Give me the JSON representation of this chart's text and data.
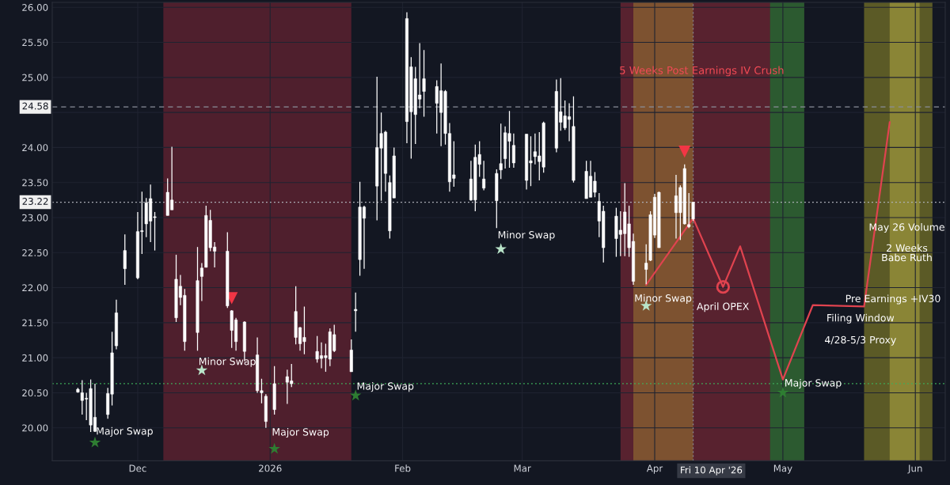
{
  "chart_data": {
    "type": "candlestick",
    "color": "#ffffff",
    "x": [
      "2025-11-17",
      "2025-11-18",
      "2025-11-19",
      "2025-11-20",
      "2025-11-21",
      "2025-11-24",
      "2025-11-25",
      "2025-11-26",
      "2025-11-28",
      "2025-12-01",
      "2025-12-02",
      "2025-12-03",
      "2025-12-04",
      "2025-12-05",
      "2025-12-08",
      "2025-12-09",
      "2025-12-10",
      "2025-12-11",
      "2025-12-12",
      "2025-12-15",
      "2025-12-16",
      "2025-12-17",
      "2025-12-18",
      "2025-12-19",
      "2025-12-22",
      "2025-12-23",
      "2025-12-24",
      "2025-12-26",
      "2025-12-29",
      "2025-12-30",
      "2025-12-31",
      "2026-01-02",
      "2026-01-05",
      "2026-01-06",
      "2026-01-07",
      "2026-01-08",
      "2026-01-09",
      "2026-01-12",
      "2026-01-13",
      "2026-01-14",
      "2026-01-15",
      "2026-01-16",
      "2026-01-20",
      "2026-01-21",
      "2026-01-22",
      "2026-01-23",
      "2026-01-26",
      "2026-01-27",
      "2026-01-28",
      "2026-01-29",
      "2026-01-30",
      "2026-02-02",
      "2026-02-03",
      "2026-02-04",
      "2026-02-05",
      "2026-02-06",
      "2026-02-09",
      "2026-02-10",
      "2026-02-11",
      "2026-02-12",
      "2026-02-13",
      "2026-02-17",
      "2026-02-18",
      "2026-02-19",
      "2026-02-20",
      "2026-02-23",
      "2026-02-24",
      "2026-02-25",
      "2026-02-26",
      "2026-02-27",
      "2026-03-02",
      "2026-03-03",
      "2026-03-04",
      "2026-03-05",
      "2026-03-06",
      "2026-03-09",
      "2026-03-10",
      "2026-03-11",
      "2026-03-12",
      "2026-03-13",
      "2026-03-16",
      "2026-03-17",
      "2026-03-18",
      "2026-03-19",
      "2026-03-20",
      "2026-03-23",
      "2026-03-24",
      "2026-03-25",
      "2026-03-26",
      "2026-03-27",
      "2026-03-30",
      "2026-03-31",
      "2026-04-01",
      "2026-04-02",
      "2026-04-06",
      "2026-04-07",
      "2026-04-08",
      "2026-04-09",
      "2026-04-10"
    ],
    "ohlc": [
      [
        20.51,
        20.57,
        20.5,
        20.55
      ],
      [
        20.39,
        20.68,
        20.19,
        20.5
      ],
      [
        20.41,
        20.5,
        20.11,
        20.42
      ],
      [
        20.04,
        20.69,
        19.94,
        20.56
      ],
      [
        19.95,
        20.63,
        19.94,
        20.15
      ],
      [
        20.19,
        20.57,
        20.13,
        20.49
      ],
      [
        20.48,
        21.37,
        20.32,
        21.07
      ],
      [
        21.17,
        21.83,
        21.12,
        21.64
      ],
      [
        22.27,
        22.76,
        22.04,
        22.53
      ],
      [
        22.14,
        23.08,
        22.12,
        22.8
      ],
      [
        22.8,
        23.37,
        22.48,
        22.81
      ],
      [
        22.91,
        23.28,
        22.72,
        23.21
      ],
      [
        22.95,
        23.47,
        22.65,
        23.27
      ],
      [
        23.0,
        23.08,
        22.53,
        23.01
      ],
      [
        23.03,
        23.56,
        23.03,
        23.36
      ],
      [
        23.11,
        24.01,
        23.11,
        23.25
      ],
      [
        21.57,
        22.47,
        21.51,
        22.12
      ],
      [
        21.86,
        22.18,
        21.75,
        22.02
      ],
      [
        21.23,
        21.98,
        21.1,
        21.89
      ],
      [
        21.36,
        22.58,
        21.1,
        22.1
      ],
      [
        22.16,
        22.35,
        21.81,
        22.28
      ],
      [
        22.29,
        23.17,
        22.29,
        23.03
      ],
      [
        22.57,
        23.11,
        22.52,
        22.96
      ],
      [
        22.52,
        22.65,
        22.29,
        22.58
      ],
      [
        21.74,
        22.79,
        21.71,
        22.52
      ],
      [
        21.39,
        21.68,
        21.14,
        21.67
      ],
      [
        21.23,
        21.57,
        21.1,
        21.54
      ],
      [
        21.09,
        21.52,
        20.95,
        21.51
      ],
      [
        20.53,
        21.29,
        20.5,
        21.04
      ],
      [
        20.5,
        20.7,
        20.35,
        20.53
      ],
      [
        20.09,
        20.48,
        20.0,
        20.45
      ],
      [
        20.26,
        20.88,
        20.19,
        20.63
      ],
      [
        20.65,
        20.83,
        20.34,
        20.73
      ],
      [
        20.63,
        20.91,
        20.58,
        20.67
      ],
      [
        21.29,
        22.02,
        21.19,
        21.66
      ],
      [
        21.2,
        21.44,
        21.1,
        21.43
      ],
      [
        21.23,
        21.73,
        21.05,
        21.29
      ],
      [
        20.98,
        21.31,
        20.93,
        21.09
      ],
      [
        20.99,
        21.22,
        20.85,
        21.03
      ],
      [
        21.0,
        21.2,
        20.8,
        21.03
      ],
      [
        20.98,
        21.42,
        20.88,
        21.37
      ],
      [
        21.1,
        21.47,
        21.08,
        21.33
      ],
      [
        20.8,
        21.26,
        20.8,
        21.11
      ],
      [
        21.67,
        21.93,
        21.37,
        21.69
      ],
      [
        22.4,
        23.51,
        22.17,
        23.15
      ],
      [
        22.99,
        23.17,
        22.27,
        23.15
      ],
      [
        23.45,
        25.01,
        22.96,
        24.0
      ],
      [
        23.99,
        24.5,
        23.24,
        24.2
      ],
      [
        23.63,
        24.24,
        23.37,
        24.22
      ],
      [
        22.81,
        23.6,
        22.7,
        23.5
      ],
      [
        23.28,
        24.0,
        23.28,
        23.88
      ],
      [
        24.37,
        25.93,
        24.06,
        25.84
      ],
      [
        24.51,
        25.29,
        23.84,
        25.15
      ],
      [
        24.47,
        25.15,
        24.05,
        24.98
      ],
      [
        24.69,
        25.49,
        24.56,
        24.75
      ],
      [
        24.8,
        25.39,
        24.44,
        24.98
      ],
      [
        24.63,
        24.96,
        24.2,
        24.87
      ],
      [
        24.5,
        25.2,
        24.02,
        24.81
      ],
      [
        24.2,
        24.82,
        24.04,
        24.8
      ],
      [
        23.51,
        24.35,
        23.37,
        24.2
      ],
      [
        23.56,
        24.09,
        23.44,
        23.61
      ],
      [
        23.25,
        23.81,
        23.24,
        23.55
      ],
      [
        23.25,
        24.04,
        23.09,
        23.86
      ],
      [
        23.76,
        24.09,
        23.58,
        23.9
      ],
      [
        23.42,
        23.81,
        23.39,
        23.55
      ],
      [
        23.24,
        23.69,
        22.85,
        23.63
      ],
      [
        23.68,
        24.34,
        23.55,
        23.77
      ],
      [
        23.84,
        24.3,
        23.7,
        24.21
      ],
      [
        24.09,
        24.52,
        23.71,
        24.2
      ],
      [
        23.78,
        24.2,
        23.71,
        24.03
      ],
      [
        23.53,
        24.19,
        23.4,
        24.19
      ],
      [
        23.78,
        24.16,
        23.45,
        23.81
      ],
      [
        23.87,
        24.2,
        23.76,
        23.94
      ],
      [
        23.8,
        24.22,
        23.53,
        23.88
      ],
      [
        23.72,
        24.37,
        23.64,
        24.35
      ],
      [
        23.99,
        24.97,
        23.93,
        24.8
      ],
      [
        24.36,
        24.99,
        24.24,
        24.51
      ],
      [
        24.28,
        24.67,
        24.25,
        24.45
      ],
      [
        24.4,
        24.63,
        24.09,
        24.44
      ],
      [
        23.53,
        24.73,
        23.5,
        24.3
      ],
      [
        23.27,
        23.81,
        23.27,
        23.66
      ],
      [
        23.29,
        23.81,
        23.29,
        23.59
      ],
      [
        23.36,
        23.65,
        23.29,
        23.52
      ],
      [
        22.95,
        23.35,
        22.72,
        23.23
      ],
      [
        22.57,
        23.17,
        22.36,
        23.09
      ],
      [
        22.7,
        23.14,
        22.44,
        23.02
      ],
      [
        22.76,
        23.09,
        22.45,
        22.82
      ],
      [
        22.77,
        23.49,
        22.45,
        23.08
      ],
      [
        22.57,
        23.17,
        22.44,
        22.91
      ],
      [
        22.09,
        22.77,
        22.04,
        22.66
      ],
      [
        22.26,
        22.62,
        22.05,
        22.35
      ],
      [
        22.39,
        23.09,
        22.38,
        23.04
      ],
      [
        22.75,
        23.34,
        22.71,
        23.29
      ],
      [
        22.57,
        23.37,
        22.57,
        23.36
      ],
      [
        23.07,
        23.61,
        22.7,
        23.31
      ],
      [
        23.07,
        23.46,
        22.68,
        23.43
      ],
      [
        22.91,
        23.76,
        22.9,
        23.7
      ],
      [
        22.87,
        23.35,
        22.85,
        22.9
      ],
      [
        22.98,
        23.22,
        22.95,
        23.22
      ]
    ],
    "series": [
      {
        "type": "line",
        "color": "#e0434f",
        "marker": "none",
        "x": [
          "2026-03-30",
          "2026-04-10",
          "2026-04-17",
          "2026-04-21",
          "2026-05-01",
          "2026-05-08",
          "2026-05-20",
          "2026-05-26"
        ],
        "values": [
          22.04,
          22.99,
          22.01,
          22.59,
          20.69,
          21.75,
          21.73,
          24.36
        ]
      },
      {
        "type": "scatter",
        "color": "#f23645",
        "marker": "triangle",
        "x": [
          "2025-12-23",
          "2026-04-08"
        ],
        "values": [
          21.85,
          23.94
        ]
      },
      {
        "type": "scatter",
        "marker": "star",
        "colors": [
          "#2e7d32",
          "#b9e4c9",
          "#2e7d32",
          "#2e7d32",
          "#b9e4c9",
          "#b9e4c9",
          "#2e7d32"
        ],
        "x": [
          "2025-11-21",
          "2025-12-16",
          "2026-01-02",
          "2026-01-21",
          "2026-02-24",
          "2026-03-30",
          "2026-05-01"
        ],
        "values": [
          19.79,
          20.82,
          19.7,
          20.46,
          22.55,
          21.74,
          20.5
        ]
      },
      {
        "type": "scatter",
        "color": "#e0434f",
        "marker": "circle",
        "x": [
          "2026-04-17"
        ],
        "values": [
          22.01
        ]
      }
    ],
    "bands": [
      {
        "axis": "x",
        "from": "2025-12-07",
        "to": "2026-01-20",
        "color": "#4f1f2d"
      },
      {
        "axis": "x",
        "from": "2026-03-24",
        "to": "2026-05-01",
        "color": "#58222f",
        "label": "5 Weeks Post Earnings IV Crush"
      },
      {
        "axis": "x",
        "from": "2026-03-27",
        "to": "2026-04-10",
        "color": "#7d5230"
      },
      {
        "axis": "x",
        "from": "2026-04-28",
        "to": "2026-05-06",
        "color": "#2c5a30"
      },
      {
        "axis": "x",
        "from": "2026-05-20",
        "to": "2026-06-05",
        "color": "#5b5a26"
      },
      {
        "axis": "x",
        "from": "2026-05-26",
        "to": "2026-06-02",
        "color": "#8a8536"
      }
    ],
    "ref_lines": [
      {
        "axis": "y",
        "value": 24.58,
        "label": "24.58",
        "color": "#8a8e99",
        "line_style": "dashed"
      },
      {
        "axis": "y",
        "value": 23.22,
        "label": "23.22",
        "color": "#b0b3bb",
        "line_style": "dotted"
      },
      {
        "axis": "y",
        "value": 20.63,
        "color": "#3fae5a",
        "line_style": "dotted"
      },
      {
        "axis": "x",
        "value": "2026-04-10",
        "label": "Fri 10 Apr '26",
        "color": "#8a8e99",
        "line_style": "dotted"
      }
    ],
    "annotations": [
      "Major Swap",
      "Minor Swap",
      "Major Swap",
      "Major Swap",
      "Minor Swap",
      "Minor Swap",
      "April OPEX",
      "Major Swap",
      "Filing Window",
      "4/28-5/3 Proxy",
      "May 26 Volume",
      "2 Weeks\nBabe Ruth",
      "Pre Earnings +IV30"
    ],
    "xlim": [
      "2025-11-11",
      "2026-06-08"
    ],
    "xticks": [
      {
        "value": "2025-12-01",
        "label": "Dec"
      },
      {
        "value": "2026-01-01",
        "label": "2026"
      },
      {
        "value": "2026-02-01",
        "label": "Feb"
      },
      {
        "value": "2026-03-01",
        "label": "Mar"
      },
      {
        "value": "2026-04-01",
        "label": "Apr"
      },
      {
        "value": "2026-05-01",
        "label": "May"
      },
      {
        "value": "2026-06-01",
        "label": "Jun"
      }
    ],
    "ylim": [
      19.53,
      26.07
    ],
    "yticks": [
      {
        "value": 20,
        "label": "20.00"
      },
      {
        "value": 20.5,
        "label": "20.50"
      },
      {
        "value": 21,
        "label": "21.00"
      },
      {
        "value": 21.5,
        "label": "21.50"
      },
      {
        "value": 22,
        "label": "22.00"
      },
      {
        "value": 22.5,
        "label": "22.50"
      },
      {
        "value": 23,
        "label": "23.00"
      },
      {
        "value": 23.5,
        "label": "23.50"
      },
      {
        "value": 24,
        "label": "24.00"
      },
      {
        "value": 24.5,
        "label": null
      },
      {
        "value": 25,
        "label": "25.00"
      },
      {
        "value": 25.5,
        "label": "25.50"
      },
      {
        "value": 26,
        "label": "26.00"
      }
    ],
    "grid": true
  }
}
